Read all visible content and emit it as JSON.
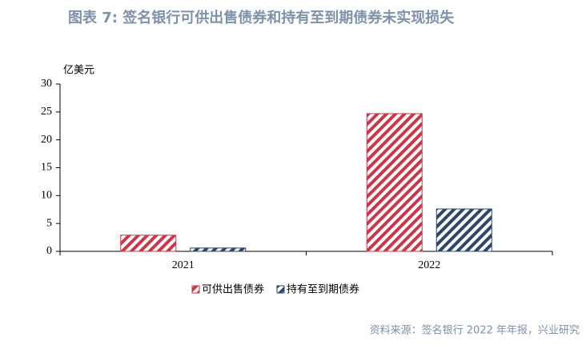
{
  "chart_data": {
    "type": "bar",
    "title": "图表 7:   签名银行可供出售债券和持有至到期债券未实现损失",
    "y_label": "亿美元",
    "categories": [
      "2021",
      "2022"
    ],
    "series": [
      {
        "name": "可供出售债券",
        "color": "#c8374a",
        "values": [
          2.9,
          24.7
        ]
      },
      {
        "name": "持有至到期债券",
        "color": "#2e466a",
        "values": [
          0.6,
          7.6
        ]
      }
    ],
    "ylim": [
      0,
      30
    ],
    "yticks": [
      0,
      5,
      10,
      15,
      20,
      25,
      30
    ],
    "source": "资料来源：签名银行 2022 年年报，兴业研究"
  }
}
